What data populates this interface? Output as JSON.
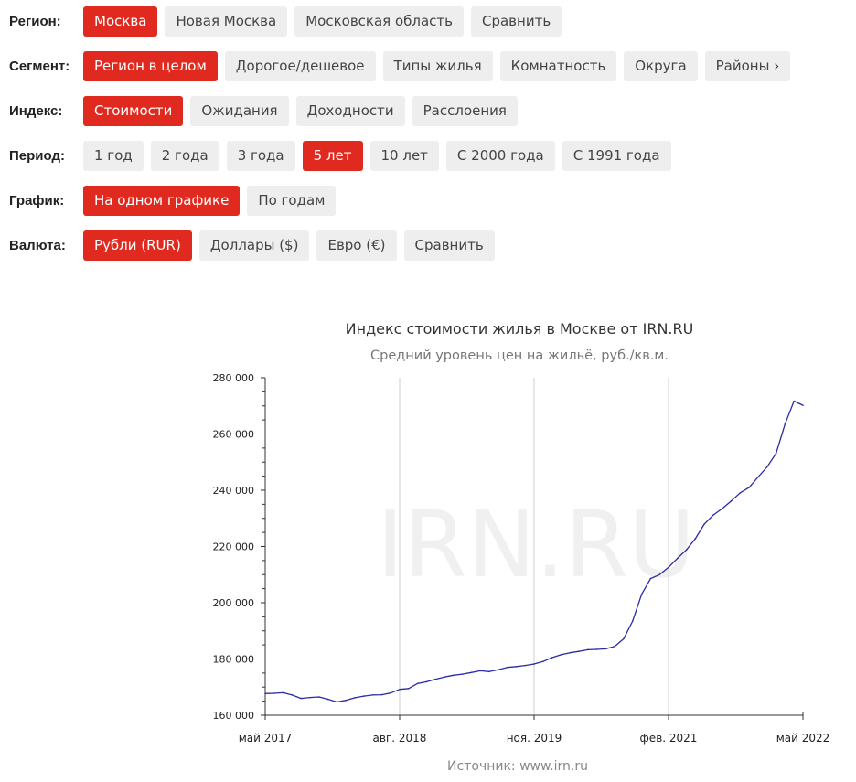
{
  "filters": [
    {
      "label": "Регион:",
      "options": [
        {
          "text": "Москва",
          "active": true
        },
        {
          "text": "Новая Москва",
          "active": false
        },
        {
          "text": "Московская область",
          "active": false
        },
        {
          "text": "Сравнить",
          "active": false
        }
      ]
    },
    {
      "label": "Сегмент:",
      "options": [
        {
          "text": "Регион в целом",
          "active": true
        },
        {
          "text": "Дорогое/дешевое",
          "active": false
        },
        {
          "text": "Типы жилья",
          "active": false
        },
        {
          "text": "Комнатность",
          "active": false
        },
        {
          "text": "Округа",
          "active": false
        },
        {
          "text": "Районы ›",
          "active": false
        }
      ]
    },
    {
      "label": "Индекс:",
      "options": [
        {
          "text": "Стоимости",
          "active": true
        },
        {
          "text": "Ожидания",
          "active": false
        },
        {
          "text": "Доходности",
          "active": false
        },
        {
          "text": "Расслоения",
          "active": false
        }
      ]
    },
    {
      "label": "Период:",
      "options": [
        {
          "text": "1 год",
          "active": false
        },
        {
          "text": "2 года",
          "active": false
        },
        {
          "text": "3 года",
          "active": false
        },
        {
          "text": "5 лет",
          "active": true
        },
        {
          "text": "10 лет",
          "active": false
        },
        {
          "text": "С 2000 года",
          "active": false
        },
        {
          "text": "С 1991 года",
          "active": false
        }
      ]
    },
    {
      "label": "График:",
      "options": [
        {
          "text": "На одном графике",
          "active": true
        },
        {
          "text": "По годам",
          "active": false
        }
      ]
    },
    {
      "label": "Валюта:",
      "options": [
        {
          "text": "Рубли (RUR)",
          "active": true
        },
        {
          "text": "Доллары ($)",
          "active": false
        },
        {
          "text": "Евро (€)",
          "active": false
        },
        {
          "text": "Сравнить",
          "active": false
        }
      ]
    }
  ],
  "chart_data": {
    "type": "line",
    "title": "Индекс стоимости жилья в Москве от IRN.RU",
    "subtitle": "Средний уровень цен на жильё, руб./кв.м.",
    "watermark": "IRN.RU",
    "source": "Источник: www.irn.ru",
    "line_color": "#2a2aa8",
    "grid": true,
    "ylim": [
      160000,
      280000
    ],
    "y_ticks": [
      160000,
      180000,
      200000,
      220000,
      240000,
      260000,
      280000
    ],
    "y_tick_labels": [
      "160 000",
      "180 000",
      "200 000",
      "220 000",
      "240 000",
      "260 000",
      "280 000"
    ],
    "x_ticks": [
      {
        "label": "май 2017",
        "date": "2017-05"
      },
      {
        "label": "авг. 2018",
        "date": "2018-08"
      },
      {
        "label": "ноя. 2019",
        "date": "2019-11"
      },
      {
        "label": "фев. 2021",
        "date": "2021-02"
      },
      {
        "label": "май 2022",
        "date": "2022-05"
      }
    ],
    "series": [
      {
        "dates": [
          "2017-05",
          "2017-06",
          "2017-07",
          "2017-08",
          "2017-09",
          "2017-10",
          "2017-11",
          "2017-12",
          "2018-01",
          "2018-02",
          "2018-03",
          "2018-04",
          "2018-05",
          "2018-06",
          "2018-07",
          "2018-08",
          "2018-09",
          "2018-10",
          "2018-11",
          "2018-12",
          "2019-01",
          "2019-02",
          "2019-03",
          "2019-04",
          "2019-05",
          "2019-06",
          "2019-07",
          "2019-08",
          "2019-09",
          "2019-10",
          "2019-11",
          "2019-12",
          "2020-01",
          "2020-02",
          "2020-03",
          "2020-04",
          "2020-05",
          "2020-06",
          "2020-07",
          "2020-08",
          "2020-09",
          "2020-10",
          "2020-11",
          "2020-12",
          "2021-01",
          "2021-02",
          "2021-03",
          "2021-04",
          "2021-05",
          "2021-06",
          "2021-07",
          "2021-08",
          "2021-09",
          "2021-10",
          "2021-11",
          "2021-12",
          "2022-01",
          "2022-02",
          "2022-03",
          "2022-04",
          "2022-05"
        ],
        "values": [
          167700,
          167800,
          168000,
          167200,
          166000,
          166300,
          166500,
          165700,
          164700,
          165300,
          166200,
          166800,
          167200,
          167300,
          167900,
          169200,
          169500,
          171300,
          171900,
          172800,
          173600,
          174200,
          174600,
          175200,
          175800,
          175500,
          176200,
          177000,
          177300,
          177700,
          178200,
          179100,
          180500,
          181500,
          182200,
          182700,
          183300,
          183400,
          183600,
          184500,
          187200,
          193500,
          203000,
          208600,
          210000,
          212600,
          215800,
          218800,
          222800,
          228000,
          231200,
          233500,
          236200,
          239100,
          241000,
          244700,
          248300,
          253100,
          263500,
          271700,
          270200
        ]
      }
    ]
  }
}
